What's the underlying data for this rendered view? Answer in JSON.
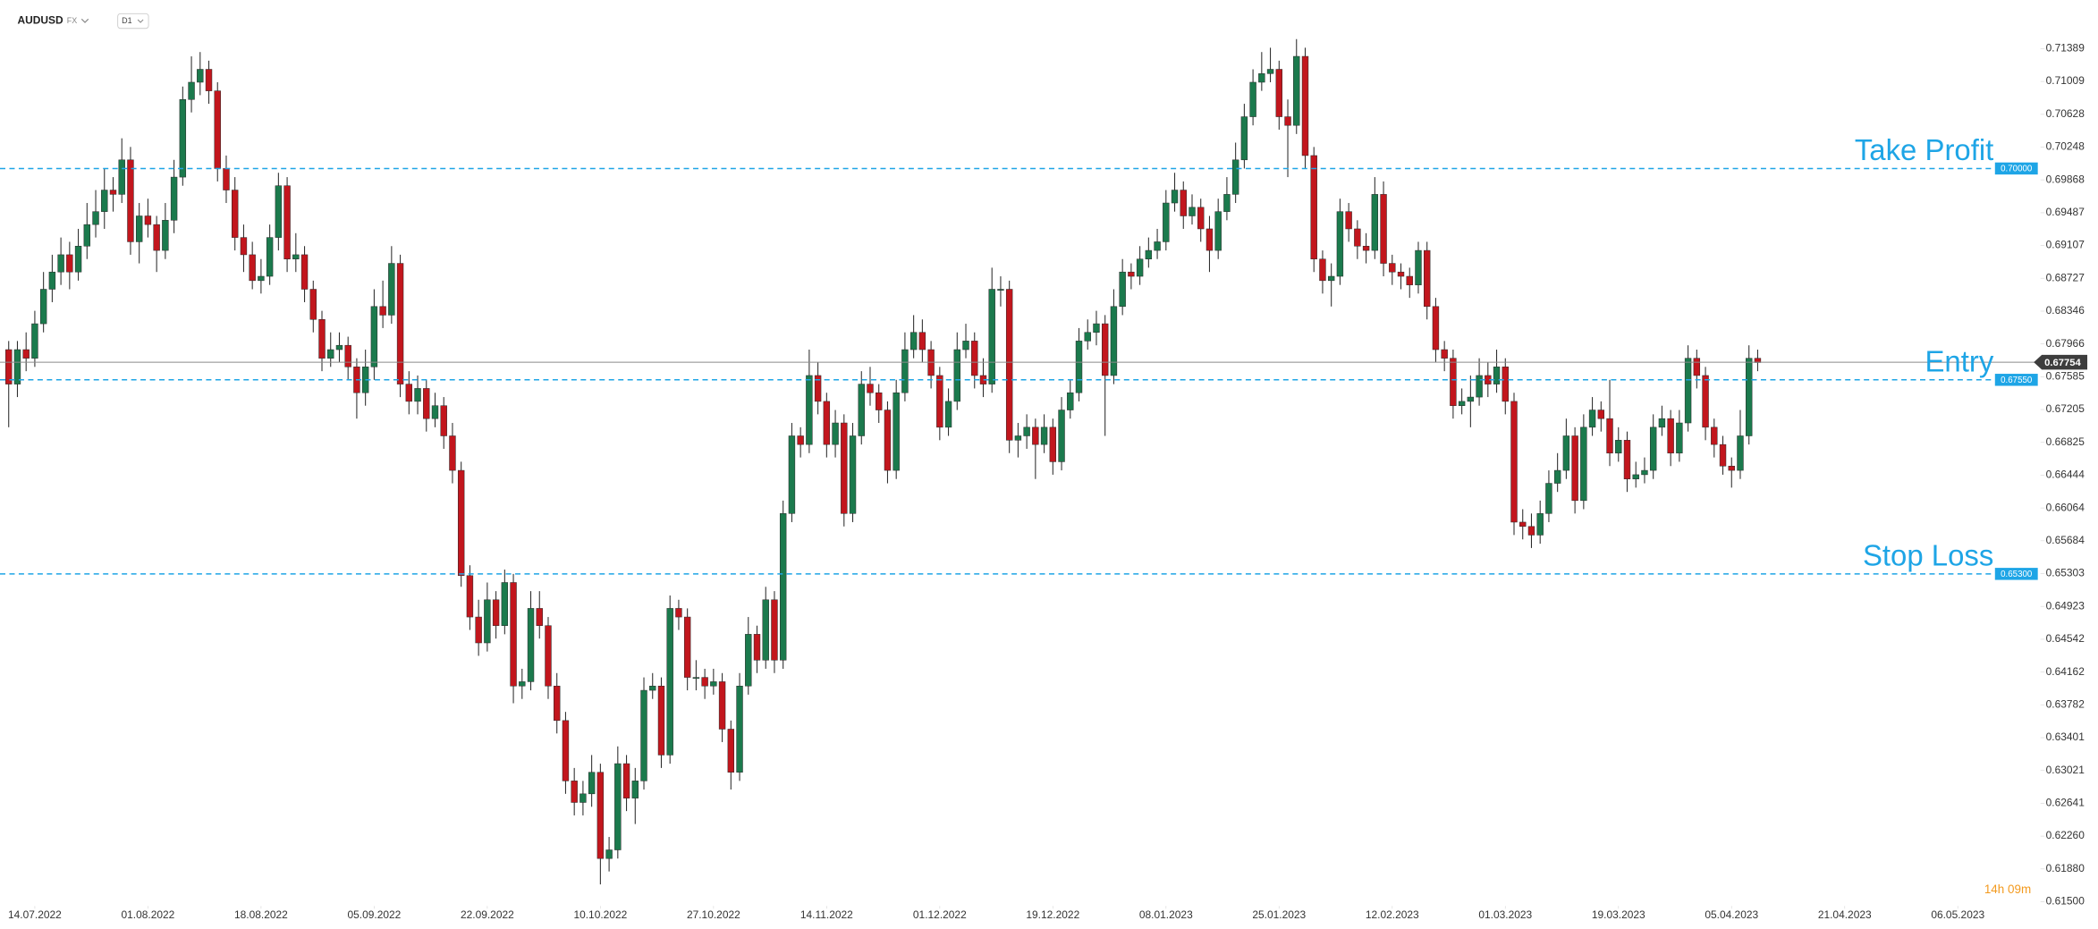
{
  "chart_data": {
    "type": "candlestick",
    "symbol": "AUDUSD",
    "market": "FX",
    "timeframe": "D1",
    "countdown": "14h 09m",
    "up_color": "#1b7a4d",
    "down_color": "#c2161d",
    "wick_color": "#2b2b2b",
    "level_color": "#1ea5e6",
    "ylim": [
      0.6145,
      0.7195
    ],
    "yticks": [
      0.71389,
      0.71009,
      0.70628,
      0.70248,
      0.69868,
      0.69487,
      0.69107,
      0.68727,
      0.68346,
      0.67966,
      0.67585,
      0.67205,
      0.66825,
      0.66444,
      0.66064,
      0.65684,
      0.65303,
      0.64923,
      0.64542,
      0.64162,
      0.63782,
      0.63401,
      0.63021,
      0.62641,
      {
        "value": 0.6226,
        "label": "0.62260"
      },
      {
        "value": 0.6188,
        "label": "0.61880"
      },
      {
        "value": 0.615,
        "label": "0.61500"
      }
    ],
    "xlim": [
      -1,
      233.5
    ],
    "xticks": [
      {
        "value": 3,
        "label": "14.07.2022"
      },
      {
        "value": 16,
        "label": "01.08.2022"
      },
      {
        "value": 29,
        "label": "18.08.2022"
      },
      {
        "value": 42,
        "label": "05.09.2022"
      },
      {
        "value": 55,
        "label": "22.09.2022"
      },
      {
        "value": 68,
        "label": "10.10.2022"
      },
      {
        "value": 81,
        "label": "27.10.2022"
      },
      {
        "value": 94,
        "label": "14.11.2022"
      },
      {
        "value": 107,
        "label": "01.12.2022"
      },
      {
        "value": 120,
        "label": "19.12.2022"
      },
      {
        "value": 133,
        "label": "08.01.2023"
      },
      {
        "value": 146,
        "label": "25.01.2023"
      },
      {
        "value": 159,
        "label": "12.02.2023"
      },
      {
        "value": 172,
        "label": "01.03.2023"
      },
      {
        "value": 185,
        "label": "19.03.2023"
      },
      {
        "value": 198,
        "label": "05.04.2023"
      },
      {
        "value": 211,
        "label": "21.04.2023"
      },
      {
        "value": 224,
        "label": "06.05.2023"
      }
    ],
    "levels": [
      {
        "name": "Take Profit",
        "value": 0.7,
        "label": "0.70000"
      },
      {
        "name": "Entry",
        "value": 0.6755,
        "label": "0.67550"
      },
      {
        "name": "Stop Loss",
        "value": 0.653,
        "label": "0.65300"
      }
    ],
    "last_price": {
      "value": 0.67754,
      "label": "0.67754"
    },
    "candles": [
      [
        0.679,
        0.68,
        0.67,
        0.675
      ],
      [
        0.675,
        0.68,
        0.6735,
        0.679
      ],
      [
        0.679,
        0.681,
        0.6765,
        0.678
      ],
      [
        0.678,
        0.6835,
        0.677,
        0.682
      ],
      [
        0.682,
        0.688,
        0.681,
        0.686
      ],
      [
        0.686,
        0.69,
        0.6845,
        0.688
      ],
      [
        0.688,
        0.692,
        0.6865,
        0.69
      ],
      [
        0.69,
        0.6915,
        0.686,
        0.688
      ],
      [
        0.688,
        0.693,
        0.687,
        0.691
      ],
      [
        0.691,
        0.696,
        0.6895,
        0.6935
      ],
      [
        0.6935,
        0.6975,
        0.692,
        0.695
      ],
      [
        0.695,
        0.7,
        0.693,
        0.6975
      ],
      [
        0.6975,
        0.699,
        0.695,
        0.697
      ],
      [
        0.697,
        0.7035,
        0.696,
        0.701
      ],
      [
        0.701,
        0.7025,
        0.69,
        0.6915
      ],
      [
        0.6915,
        0.696,
        0.689,
        0.6945
      ],
      [
        0.6945,
        0.6965,
        0.692,
        0.6935
      ],
      [
        0.6935,
        0.6945,
        0.688,
        0.6905
      ],
      [
        0.6905,
        0.696,
        0.6895,
        0.694
      ],
      [
        0.694,
        0.701,
        0.6925,
        0.699
      ],
      [
        0.699,
        0.7095,
        0.698,
        0.708
      ],
      [
        0.708,
        0.713,
        0.7065,
        0.71
      ],
      [
        0.71,
        0.7135,
        0.7085,
        0.7115
      ],
      [
        0.7115,
        0.7125,
        0.7075,
        0.709
      ],
      [
        0.709,
        0.71,
        0.6985,
        0.7
      ],
      [
        0.7,
        0.7015,
        0.696,
        0.6975
      ],
      [
        0.6975,
        0.699,
        0.6905,
        0.692
      ],
      [
        0.692,
        0.6935,
        0.688,
        0.69
      ],
      [
        0.69,
        0.6915,
        0.686,
        0.687
      ],
      [
        0.687,
        0.6895,
        0.6855,
        0.6875
      ],
      [
        0.6875,
        0.6935,
        0.6865,
        0.692
      ],
      [
        0.692,
        0.6995,
        0.6905,
        0.698
      ],
      [
        0.698,
        0.699,
        0.688,
        0.6895
      ],
      [
        0.6895,
        0.6925,
        0.688,
        0.69
      ],
      [
        0.69,
        0.691,
        0.6845,
        0.686
      ],
      [
        0.686,
        0.687,
        0.681,
        0.6825
      ],
      [
        0.6825,
        0.6835,
        0.6765,
        0.678
      ],
      [
        0.678,
        0.681,
        0.677,
        0.679
      ],
      [
        0.679,
        0.681,
        0.6775,
        0.6795
      ],
      [
        0.6795,
        0.6805,
        0.6755,
        0.677
      ],
      [
        0.677,
        0.678,
        0.671,
        0.674
      ],
      [
        0.674,
        0.679,
        0.6725,
        0.677
      ],
      [
        0.677,
        0.686,
        0.6755,
        0.684
      ],
      [
        0.684,
        0.687,
        0.6815,
        0.683
      ],
      [
        0.683,
        0.691,
        0.682,
        0.689
      ],
      [
        0.689,
        0.69,
        0.6735,
        0.675
      ],
      [
        0.675,
        0.6765,
        0.6715,
        0.673
      ],
      [
        0.673,
        0.676,
        0.6715,
        0.6745
      ],
      [
        0.6745,
        0.6755,
        0.6695,
        0.671
      ],
      [
        0.671,
        0.674,
        0.67,
        0.6725
      ],
      [
        0.6725,
        0.6735,
        0.6675,
        0.669
      ],
      [
        0.669,
        0.6705,
        0.6635,
        0.665
      ],
      [
        0.665,
        0.666,
        0.6515,
        0.6528
      ],
      [
        0.6528,
        0.654,
        0.6465,
        0.648
      ],
      [
        0.648,
        0.65,
        0.6435,
        0.645
      ],
      [
        0.645,
        0.652,
        0.644,
        0.65
      ],
      [
        0.65,
        0.651,
        0.6455,
        0.647
      ],
      [
        0.647,
        0.6535,
        0.646,
        0.652
      ],
      [
        0.652,
        0.653,
        0.638,
        0.64
      ],
      [
        0.64,
        0.642,
        0.6385,
        0.6405
      ],
      [
        0.6405,
        0.651,
        0.6395,
        0.649
      ],
      [
        0.649,
        0.651,
        0.6455,
        0.647
      ],
      [
        0.647,
        0.648,
        0.6385,
        0.64
      ],
      [
        0.64,
        0.6415,
        0.6345,
        0.636
      ],
      [
        0.636,
        0.637,
        0.6275,
        0.629
      ],
      [
        0.629,
        0.6305,
        0.625,
        0.6265
      ],
      [
        0.6265,
        0.629,
        0.625,
        0.6275
      ],
      [
        0.6275,
        0.632,
        0.626,
        0.63
      ],
      [
        0.63,
        0.631,
        0.617,
        0.62
      ],
      [
        0.62,
        0.6225,
        0.6185,
        0.621
      ],
      [
        0.621,
        0.633,
        0.62,
        0.631
      ],
      [
        0.631,
        0.632,
        0.6255,
        0.627
      ],
      [
        0.627,
        0.6305,
        0.624,
        0.629
      ],
      [
        0.629,
        0.641,
        0.628,
        0.6395
      ],
      [
        0.6395,
        0.6415,
        0.6385,
        0.64
      ],
      [
        0.64,
        0.641,
        0.6305,
        0.632
      ],
      [
        0.632,
        0.6505,
        0.631,
        0.649
      ],
      [
        0.649,
        0.65,
        0.6465,
        0.648
      ],
      [
        0.648,
        0.649,
        0.6395,
        0.641
      ],
      [
        0.641,
        0.643,
        0.6395,
        0.641
      ],
      [
        0.641,
        0.642,
        0.6385,
        0.64
      ],
      [
        0.64,
        0.642,
        0.639,
        0.6405
      ],
      [
        0.6405,
        0.6415,
        0.6335,
        0.635
      ],
      [
        0.635,
        0.636,
        0.628,
        0.63
      ],
      [
        0.63,
        0.6415,
        0.629,
        0.64
      ],
      [
        0.64,
        0.648,
        0.639,
        0.646
      ],
      [
        0.646,
        0.647,
        0.6415,
        0.643
      ],
      [
        0.643,
        0.6515,
        0.642,
        0.65
      ],
      [
        0.65,
        0.651,
        0.6415,
        0.643
      ],
      [
        0.643,
        0.6615,
        0.642,
        0.66
      ],
      [
        0.66,
        0.6705,
        0.659,
        0.669
      ],
      [
        0.669,
        0.67,
        0.6665,
        0.668
      ],
      [
        0.668,
        0.679,
        0.667,
        0.676
      ],
      [
        0.676,
        0.6775,
        0.6715,
        0.673
      ],
      [
        0.673,
        0.674,
        0.6665,
        0.668
      ],
      [
        0.668,
        0.672,
        0.6665,
        0.6705
      ],
      [
        0.6705,
        0.6715,
        0.6585,
        0.66
      ],
      [
        0.66,
        0.6705,
        0.659,
        0.669
      ],
      [
        0.669,
        0.6765,
        0.668,
        0.675
      ],
      [
        0.675,
        0.677,
        0.6725,
        0.674
      ],
      [
        0.674,
        0.675,
        0.6705,
        0.672
      ],
      [
        0.672,
        0.673,
        0.6635,
        0.665
      ],
      [
        0.665,
        0.6755,
        0.664,
        0.674
      ],
      [
        0.674,
        0.681,
        0.673,
        0.679
      ],
      [
        0.679,
        0.683,
        0.678,
        0.681
      ],
      [
        0.681,
        0.6825,
        0.6775,
        0.679
      ],
      [
        0.679,
        0.68,
        0.6745,
        0.676
      ],
      [
        0.676,
        0.677,
        0.6685,
        0.67
      ],
      [
        0.67,
        0.6745,
        0.669,
        0.673
      ],
      [
        0.673,
        0.681,
        0.672,
        0.679
      ],
      [
        0.679,
        0.682,
        0.678,
        0.68
      ],
      [
        0.68,
        0.681,
        0.6745,
        0.676
      ],
      [
        0.676,
        0.678,
        0.6735,
        0.675
      ],
      [
        0.675,
        0.6885,
        0.674,
        0.686
      ],
      [
        0.686,
        0.6875,
        0.684,
        0.686
      ],
      [
        0.686,
        0.687,
        0.667,
        0.6685
      ],
      [
        0.6685,
        0.6705,
        0.6665,
        0.669
      ],
      [
        0.669,
        0.6715,
        0.6675,
        0.67
      ],
      [
        0.67,
        0.671,
        0.664,
        0.668
      ],
      [
        0.668,
        0.6715,
        0.667,
        0.67
      ],
      [
        0.67,
        0.671,
        0.6645,
        0.666
      ],
      [
        0.666,
        0.6735,
        0.665,
        0.672
      ],
      [
        0.672,
        0.6755,
        0.671,
        0.674
      ],
      [
        0.674,
        0.6815,
        0.673,
        0.68
      ],
      [
        0.68,
        0.6825,
        0.679,
        0.681
      ],
      [
        0.681,
        0.6835,
        0.6795,
        0.682
      ],
      [
        0.682,
        0.683,
        0.669,
        0.676
      ],
      [
        0.676,
        0.686,
        0.675,
        0.684
      ],
      [
        0.684,
        0.6895,
        0.683,
        0.688
      ],
      [
        0.688,
        0.689,
        0.686,
        0.6875
      ],
      [
        0.6875,
        0.691,
        0.6865,
        0.6895
      ],
      [
        0.6895,
        0.692,
        0.6885,
        0.6905
      ],
      [
        0.6905,
        0.693,
        0.6895,
        0.6915
      ],
      [
        0.6915,
        0.6975,
        0.6905,
        0.696
      ],
      [
        0.696,
        0.6995,
        0.695,
        0.6975
      ],
      [
        0.6975,
        0.6985,
        0.693,
        0.6945
      ],
      [
        0.6945,
        0.697,
        0.6935,
        0.6955
      ],
      [
        0.6955,
        0.6965,
        0.6915,
        0.693
      ],
      [
        0.693,
        0.6945,
        0.688,
        0.6905
      ],
      [
        0.6905,
        0.6965,
        0.6895,
        0.695
      ],
      [
        0.695,
        0.699,
        0.694,
        0.697
      ],
      [
        0.697,
        0.703,
        0.696,
        0.701
      ],
      [
        0.701,
        0.7075,
        0.7,
        0.706
      ],
      [
        0.706,
        0.7115,
        0.705,
        0.71
      ],
      [
        0.71,
        0.7135,
        0.709,
        0.711
      ],
      [
        0.711,
        0.714,
        0.71,
        0.7115
      ],
      [
        0.7115,
        0.7125,
        0.7045,
        0.706
      ],
      [
        0.706,
        0.708,
        0.699,
        0.705
      ],
      [
        0.705,
        0.715,
        0.704,
        0.713
      ],
      [
        0.713,
        0.714,
        0.7,
        0.7015
      ],
      [
        0.7015,
        0.7025,
        0.688,
        0.6895
      ],
      [
        0.6895,
        0.6905,
        0.6855,
        0.687
      ],
      [
        0.687,
        0.689,
        0.684,
        0.6875
      ],
      [
        0.6875,
        0.6965,
        0.6865,
        0.695
      ],
      [
        0.695,
        0.696,
        0.6915,
        0.693
      ],
      [
        0.693,
        0.694,
        0.6895,
        0.691
      ],
      [
        0.691,
        0.6925,
        0.689,
        0.6905
      ],
      [
        0.6905,
        0.699,
        0.6895,
        0.697
      ],
      [
        0.697,
        0.6985,
        0.6875,
        0.689
      ],
      [
        0.689,
        0.69,
        0.6865,
        0.688
      ],
      [
        0.688,
        0.689,
        0.686,
        0.6875
      ],
      [
        0.6875,
        0.6885,
        0.685,
        0.6865
      ],
      [
        0.6865,
        0.6915,
        0.6855,
        0.6905
      ],
      [
        0.6905,
        0.6915,
        0.6825,
        0.684
      ],
      [
        0.684,
        0.685,
        0.6775,
        0.679
      ],
      [
        0.679,
        0.68,
        0.6765,
        0.678
      ],
      [
        0.678,
        0.679,
        0.671,
        0.6725
      ],
      [
        0.6725,
        0.6745,
        0.6715,
        0.673
      ],
      [
        0.673,
        0.676,
        0.67,
        0.6735
      ],
      [
        0.6735,
        0.678,
        0.6725,
        0.676
      ],
      [
        0.676,
        0.6775,
        0.6735,
        0.675
      ],
      [
        0.675,
        0.679,
        0.674,
        0.677
      ],
      [
        0.677,
        0.678,
        0.6715,
        0.673
      ],
      [
        0.673,
        0.674,
        0.6575,
        0.659
      ],
      [
        0.659,
        0.6605,
        0.657,
        0.6585
      ],
      [
        0.6585,
        0.66,
        0.656,
        0.6575
      ],
      [
        0.6575,
        0.6615,
        0.6565,
        0.66
      ],
      [
        0.66,
        0.665,
        0.659,
        0.6635
      ],
      [
        0.6635,
        0.667,
        0.6625,
        0.665
      ],
      [
        0.665,
        0.671,
        0.664,
        0.669
      ],
      [
        0.669,
        0.67,
        0.66,
        0.6615
      ],
      [
        0.6615,
        0.6715,
        0.6605,
        0.67
      ],
      [
        0.67,
        0.6735,
        0.669,
        0.672
      ],
      [
        0.672,
        0.673,
        0.6695,
        0.671
      ],
      [
        0.671,
        0.6755,
        0.6655,
        0.667
      ],
      [
        0.667,
        0.67,
        0.666,
        0.6685
      ],
      [
        0.6685,
        0.6695,
        0.6625,
        0.664
      ],
      [
        0.664,
        0.666,
        0.663,
        0.6645
      ],
      [
        0.6645,
        0.6665,
        0.6635,
        0.665
      ],
      [
        0.665,
        0.6715,
        0.664,
        0.67
      ],
      [
        0.67,
        0.6725,
        0.669,
        0.671
      ],
      [
        0.671,
        0.672,
        0.6655,
        0.667
      ],
      [
        0.667,
        0.672,
        0.666,
        0.6705
      ],
      [
        0.6705,
        0.6795,
        0.6695,
        0.678
      ],
      [
        0.678,
        0.679,
        0.6745,
        0.676
      ],
      [
        0.676,
        0.677,
        0.6685,
        0.67
      ],
      [
        0.67,
        0.671,
        0.6665,
        0.668
      ],
      [
        0.668,
        0.669,
        0.6645,
        0.6655
      ],
      [
        0.6655,
        0.6665,
        0.663,
        0.665
      ],
      [
        0.665,
        0.672,
        0.664,
        0.669
      ],
      [
        0.669,
        0.6795,
        0.668,
        0.678
      ],
      [
        0.678,
        0.679,
        0.6765,
        0.6775
      ]
    ]
  }
}
